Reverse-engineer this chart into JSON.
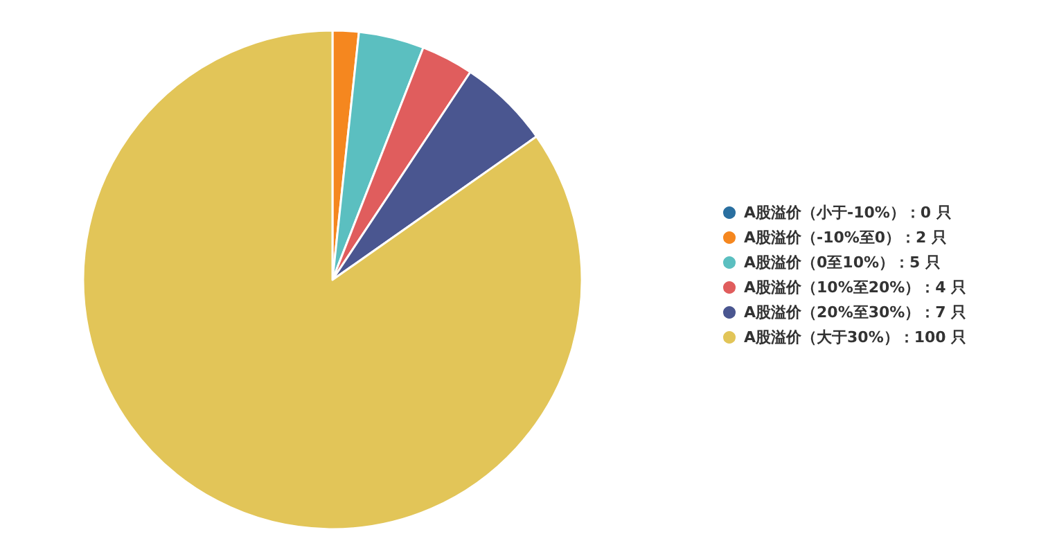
{
  "chart_data": {
    "type": "pie",
    "categories": [
      "A股溢价（小于-10%）：0 只",
      "A股溢价（-10%至0）：2 只",
      "A股溢价（0至10%）：5 只",
      "A股溢价（10%至20%）：4 只",
      "A股溢价（20%至30%）：7 只",
      "A股溢价（大于30%）：100 只"
    ],
    "values": [
      0,
      2,
      5,
      4,
      7,
      100
    ],
    "colors": [
      "#2a6fa0",
      "#f5871f",
      "#5bbfc0",
      "#e05d5d",
      "#4a5690",
      "#e2c558"
    ],
    "legend": "right"
  }
}
